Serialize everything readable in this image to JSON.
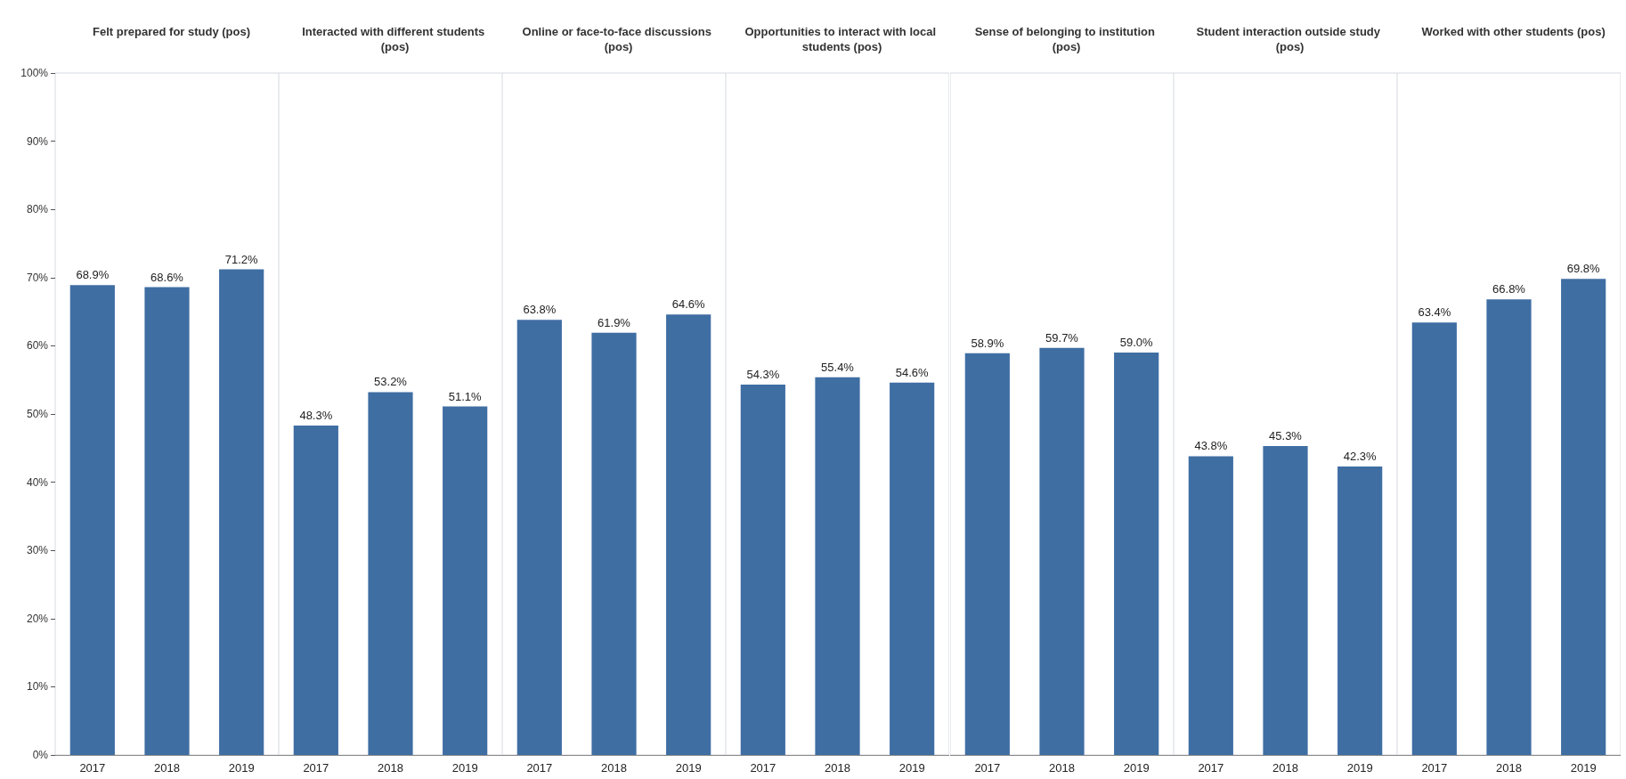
{
  "chart_data": [
    {
      "type": "bar",
      "title": "Felt prepared for study (pos)",
      "categories": [
        "2017",
        "2018",
        "2019"
      ],
      "values": [
        68.9,
        68.6,
        71.2
      ],
      "value_labels": [
        "68.9%",
        "68.6%",
        "71.2%"
      ],
      "color": "#3f6ea3",
      "ylim": [
        0,
        100
      ],
      "yticks": [
        {
          "value": 0,
          "label": "0%"
        },
        {
          "value": 10,
          "label": "10%"
        },
        {
          "value": 20,
          "label": "20%"
        },
        {
          "value": 30,
          "label": "30%"
        },
        {
          "value": 40,
          "label": "40%"
        },
        {
          "value": 50,
          "label": "50%"
        },
        {
          "value": 60,
          "label": "60%"
        },
        {
          "value": 70,
          "label": "70%"
        },
        {
          "value": 80,
          "label": "80%"
        },
        {
          "value": 90,
          "label": "90%"
        },
        {
          "value": 100,
          "label": "100%"
        }
      ],
      "grid": false
    },
    {
      "type": "bar",
      "title": "Interacted with different students (pos)",
      "categories": [
        "2017",
        "2018",
        "2019"
      ],
      "values": [
        48.3,
        53.2,
        51.1
      ],
      "value_labels": [
        "48.3%",
        "53.2%",
        "51.1%"
      ],
      "color": "#3f6ea3",
      "ylim": [
        0,
        100
      ],
      "tick_labels": "x",
      "grid": false
    },
    {
      "type": "bar",
      "title": "Online or face-to-face discussions (pos)",
      "categories": [
        "2017",
        "2018",
        "2019"
      ],
      "values": [
        63.8,
        61.9,
        64.6
      ],
      "value_labels": [
        "63.8%",
        "61.9%",
        "64.6%"
      ],
      "color": "#3f6ea3",
      "ylim": [
        0,
        100
      ],
      "tick_labels": "x",
      "grid": false
    },
    {
      "type": "bar",
      "title": "Opportunities to interact with local students (pos)",
      "categories": [
        "2017",
        "2018",
        "2019"
      ],
      "values": [
        54.3,
        55.4,
        54.6
      ],
      "value_labels": [
        "54.3%",
        "55.4%",
        "54.6%"
      ],
      "color": "#3f6ea3",
      "ylim": [
        0,
        100
      ],
      "tick_labels": "x",
      "grid": false
    },
    {
      "type": "bar",
      "title": "Sense of belonging to institution (pos)",
      "categories": [
        "2017",
        "2018",
        "2019"
      ],
      "values": [
        58.9,
        59.7,
        59.0
      ],
      "value_labels": [
        "58.9%",
        "59.7%",
        "59.0%"
      ],
      "color": "#3f6ea3",
      "ylim": [
        0,
        100
      ],
      "tick_labels": "x",
      "grid": false
    },
    {
      "type": "bar",
      "title": "Student interaction outside study (pos)",
      "categories": [
        "2017",
        "2018",
        "2019"
      ],
      "values": [
        43.8,
        45.3,
        42.3
      ],
      "value_labels": [
        "43.8%",
        "45.3%",
        "42.3%"
      ],
      "color": "#3f6ea3",
      "ylim": [
        0,
        100
      ],
      "tick_labels": "x",
      "grid": false
    },
    {
      "type": "bar",
      "title": "Worked with other students (pos)",
      "categories": [
        "2017",
        "2018",
        "2019"
      ],
      "values": [
        63.4,
        66.8,
        69.8
      ],
      "value_labels": [
        "63.4%",
        "66.8%",
        "69.8%"
      ],
      "color": "#3f6ea3",
      "ylim": [
        0,
        100
      ],
      "tick_labels": "x",
      "grid": false
    }
  ]
}
